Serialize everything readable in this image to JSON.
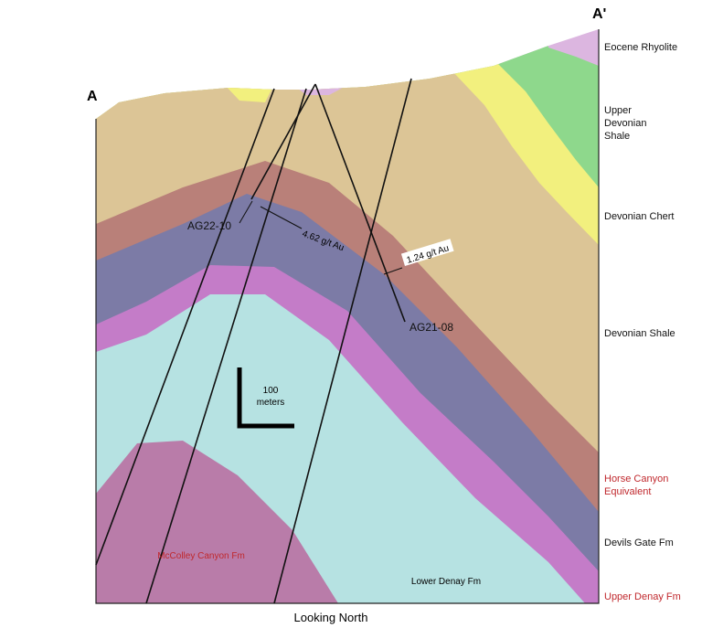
{
  "section": {
    "left_end": "A",
    "right_end": "A'",
    "view": "Looking North"
  },
  "legend": [
    {
      "lines": [
        "Eocene Rhyolite"
      ]
    },
    {
      "lines": [
        "Upper",
        "Devonian",
        "Shale"
      ]
    },
    {
      "lines": [
        "Devonian Chert"
      ]
    },
    {
      "lines": [
        "Devonian Shale"
      ]
    },
    {
      "lines": [
        "Horse Canyon",
        "Equivalent"
      ]
    },
    {
      "lines": [
        "Devils Gate Fm"
      ]
    },
    {
      "lines": [
        "Upper Denay Fm"
      ]
    }
  ],
  "holes": [
    {
      "name": "AG22-10",
      "assay": "4.62 g/t Au"
    },
    {
      "name": "AG21-08",
      "assay": "1.24 g/t Au"
    }
  ],
  "scale_bar": [
    "100",
    "meters"
  ],
  "units_in_section": [
    "McColley Canyon Fm",
    "Lower Denay Fm"
  ]
}
